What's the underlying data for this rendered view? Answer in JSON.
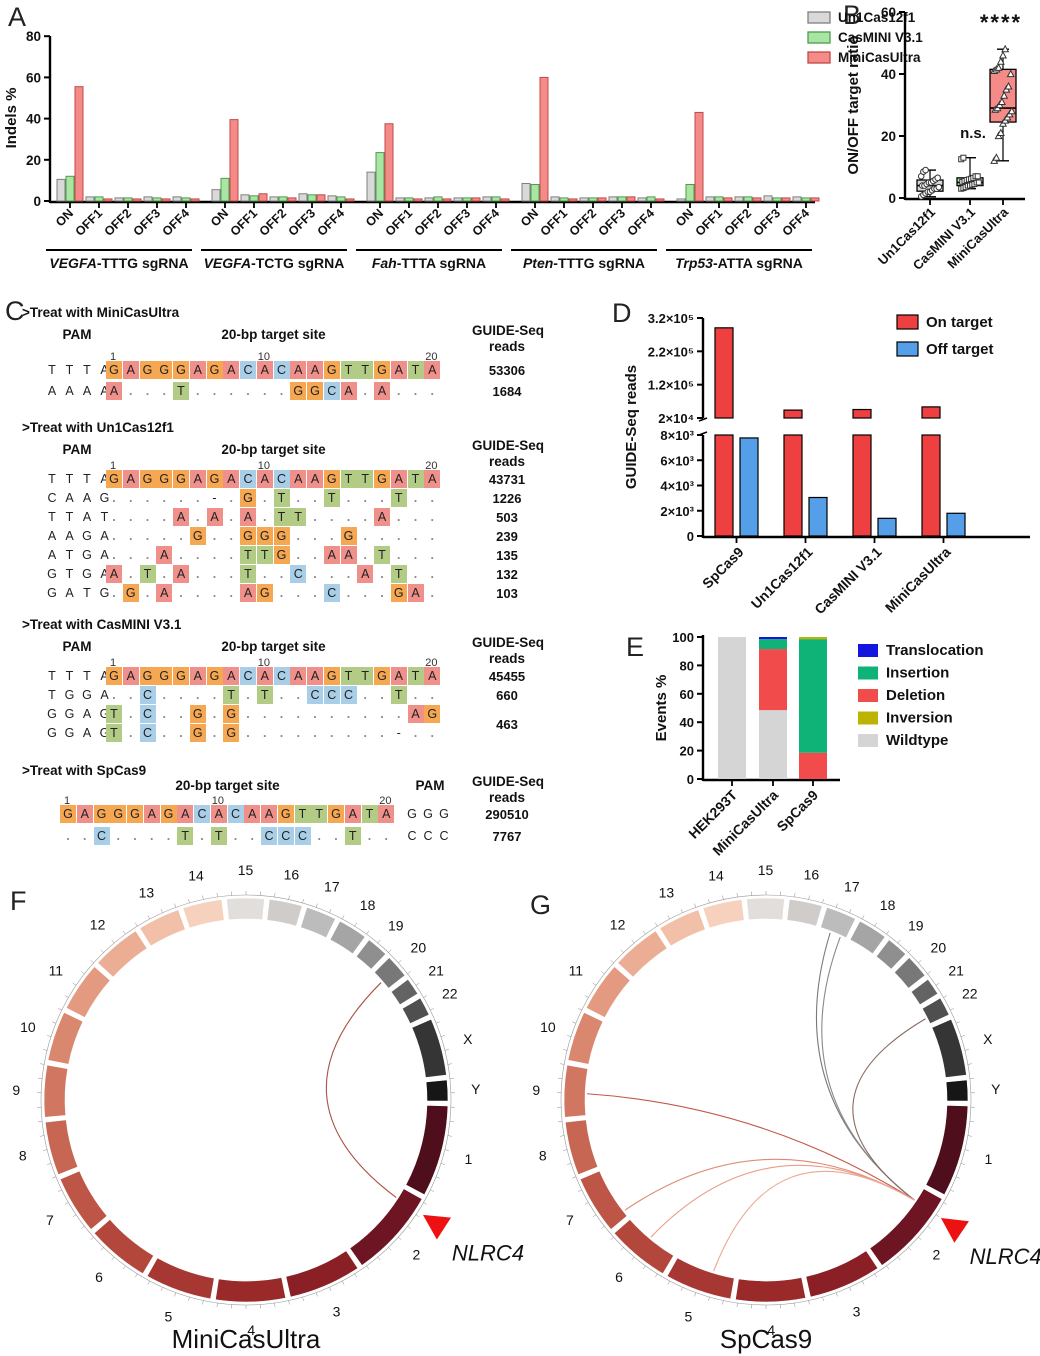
{
  "panels": {
    "A": {
      "label": "A",
      "ylabel": "Indels %",
      "yticks": [
        0,
        20,
        40,
        60,
        80
      ],
      "sites": [
        "ON",
        "OFF1",
        "OFF2",
        "OFF3",
        "OFF4"
      ],
      "legend": [
        {
          "label": "Un1Cas12f1",
          "fill": "#D9D9D9",
          "stroke": "#7F7F7F"
        },
        {
          "label": "CasMINI V3.1",
          "fill": "#A9E6A4",
          "stroke": "#4E9B4E"
        },
        {
          "label": "MiniCasUltra",
          "fill": "#F58B88",
          "stroke": "#C04848"
        }
      ],
      "groups": [
        {
          "gene": "VEGFA",
          "suffix": "-TTTG sgRNA",
          "values": [
            [
              10.5,
              12,
              55.5
            ],
            [
              2,
              2,
              1
            ],
            [
              1.5,
              1.5,
              1
            ],
            [
              2,
              1.5,
              1
            ],
            [
              2,
              1.5,
              1
            ]
          ]
        },
        {
          "gene": "VEGFA",
          "suffix": "-TCTG sgRNA",
          "values": [
            [
              5.5,
              11,
              39.5
            ],
            [
              3,
              2.5,
              3.5
            ],
            [
              2,
              2,
              1.5
            ],
            [
              3.5,
              3,
              3
            ],
            [
              2.5,
              2,
              1
            ]
          ]
        },
        {
          "gene": "Fah",
          "suffix": "-TTTA sgRNA",
          "values": [
            [
              14,
              23.5,
              37.5
            ],
            [
              1.5,
              1.5,
              1
            ],
            [
              1.5,
              2,
              1
            ],
            [
              1.5,
              1.5,
              1.5
            ],
            [
              2,
              2,
              1
            ]
          ]
        },
        {
          "gene": "Pten",
          "suffix": "-TTTG sgRNA",
          "values": [
            [
              8.5,
              8,
              60
            ],
            [
              2,
              1.5,
              1
            ],
            [
              1.5,
              1.5,
              1.5
            ],
            [
              2,
              2,
              2
            ],
            [
              1.5,
              2,
              1
            ]
          ]
        },
        {
          "gene": "Trp53",
          "suffix": "-ATTA sgRNA",
          "values": [
            [
              1,
              8,
              43
            ],
            [
              2,
              2,
              1.5
            ],
            [
              2,
              2,
              1.5
            ],
            [
              2.5,
              1.5,
              1.5
            ],
            [
              2,
              1.5,
              1.5
            ]
          ]
        }
      ]
    },
    "B": {
      "label": "B",
      "ylabel": "ON/OFF target ratio",
      "yticks": [
        0,
        20,
        40,
        60
      ],
      "groups": [
        {
          "name": "Un1Cas12f1",
          "marker": "circle",
          "fill": "#D9D9D9",
          "q1": 2.2,
          "median": 4,
          "q3": 5.8,
          "lo": 0.4,
          "hi": 9,
          "annotation": "",
          "points": [
            0.5,
            1,
            1.5,
            2,
            2,
            2.5,
            3,
            3,
            3.5,
            4,
            4,
            4.5,
            5,
            5,
            5.5,
            6,
            6.5,
            7,
            8.5,
            9
          ]
        },
        {
          "name": "CasMINI V3.1",
          "marker": "square",
          "fill": "#A9E6A4",
          "q1": 4,
          "median": 5,
          "q3": 6.5,
          "lo": 3,
          "hi": 13,
          "annotation": "n.s.",
          "points": [
            3,
            3.2,
            3.5,
            4,
            4,
            4.3,
            4.5,
            5,
            5,
            5.2,
            5.5,
            5.8,
            6,
            6.2,
            6.5,
            7,
            7,
            12.5,
            13
          ]
        },
        {
          "name": "MiniCasUltra",
          "marker": "triangle",
          "fill": "#F58B88",
          "q1": 24.5,
          "median": 29,
          "q3": 41.5,
          "lo": 12,
          "hi": 48,
          "annotation": "****",
          "points": [
            12,
            13,
            20,
            21,
            24,
            25,
            26,
            27,
            28,
            28.5,
            29,
            30,
            31,
            33,
            35,
            36,
            40,
            41,
            41.5,
            42,
            44,
            46,
            48
          ]
        }
      ]
    },
    "C": {
      "label": "C",
      "pam_header": "PAM",
      "target_header": "20-bp target site",
      "reads_header_line1": "GUIDE-Seq",
      "reads_header_line2": "reads",
      "ruler": [
        "1",
        "10",
        "20"
      ],
      "base_colors": {
        "A": "#F0908A",
        "G": "#F5A752",
        "C": "#A9CFE8",
        "T": "#B2CC86"
      },
      "blocks": [
        {
          "title": ">Treat with MiniCasUltra",
          "pam_side": "left",
          "ref": {
            "pam": "TTTA",
            "seq": "GAGGGAGACACAAGTTGATA",
            "reads": "53306"
          },
          "rows": [
            {
              "pam": "AAAA",
              "muts": {
                "1": "A",
                "5": "T",
                "12": "G",
                "13": "G",
                "14": "C",
                "15": "A",
                "17": "A"
              },
              "reads": "1684"
            }
          ]
        },
        {
          "title": ">Treat with Un1Cas12f1",
          "pam_side": "left",
          "ref": {
            "pam": "TTTA",
            "seq": "GAGGGAGACACAAGTTGATA",
            "reads": "43731"
          },
          "rows": [
            {
              "pam": "CAAG",
              "muts": {
                "7": "-",
                "9": "G",
                "11": "T",
                "14": "T",
                "18": "T"
              },
              "reads": "1226"
            },
            {
              "pam": "TTAT",
              "muts": {
                "5": "A",
                "7": "A",
                "9": "A",
                "11": "T",
                "12": "T",
                "17": "A"
              },
              "reads": "503"
            },
            {
              "pam": "AAGA",
              "muts": {
                "6": "G",
                "9": "G",
                "10": "G",
                "11": "G",
                "15": "G"
              },
              "reads": "239"
            },
            {
              "pam": "ATGA",
              "muts": {
                "4": "A",
                "9": "T",
                "10": "T",
                "11": "G",
                "14": "A",
                "15": "A",
                "17": "T"
              },
              "reads": "135"
            },
            {
              "pam": "GTGA",
              "muts": {
                "1": "A",
                "3": "T",
                "5": "A",
                "9": "T",
                "12": "C",
                "16": "A",
                "18": "T"
              },
              "reads": "132"
            },
            {
              "pam": "GATG",
              "muts": {
                "2": "G",
                "4": "A",
                "9": "A",
                "10": "G",
                "14": "C",
                "18": "G",
                "19": "A"
              },
              "reads": "103"
            }
          ]
        },
        {
          "title": ">Treat with CasMINI V3.1",
          "pam_side": "left",
          "ref": {
            "pam": "TTTA",
            "seq": "GAGGGAGACACAAGTTGATA",
            "reads": "45455"
          },
          "rows": [
            {
              "pam": "TGGA",
              "muts": {
                "3": "C",
                "8": "T",
                "10": "T",
                "13": "C",
                "14": "C",
                "15": "C",
                "18": "T"
              },
              "reads": "660"
            },
            {
              "pam": "GGAG",
              "muts": {
                "1": "T",
                "3": "C",
                "6": "G",
                "8": "G",
                "19": "A",
                "20": "G"
              },
              "reads": "463",
              "reads_span": 2
            },
            {
              "pam": "GGAG",
              "muts": {
                "1": "T",
                "3": "C",
                "6": "G",
                "8": "G",
                "18": "-"
              },
              "reads": ""
            }
          ]
        },
        {
          "title": ">Treat with SpCas9",
          "pam_side": "right",
          "ref": {
            "pam": "GGG",
            "seq": "GAGGGAGACACAAGTTGATA",
            "reads": "290510"
          },
          "rows": [
            {
              "pam": "CCC",
              "muts": {
                "3": "C",
                "8": "T",
                "10": "T",
                "13": "C",
                "14": "C",
                "15": "C",
                "18": "T"
              },
              "reads": "7767"
            }
          ]
        }
      ]
    },
    "D": {
      "label": "D",
      "ylabel": "GUIDE-Seq reads",
      "legend": [
        {
          "label": "On target",
          "color": "#EE4040"
        },
        {
          "label": "Off target",
          "color": "#549FE8"
        }
      ],
      "lower_ticks": [
        {
          "v": 0,
          "label": "0"
        },
        {
          "v": 2000,
          "label": "2×10³"
        },
        {
          "v": 4000,
          "label": "4×10³"
        },
        {
          "v": 6000,
          "label": "6×10³"
        },
        {
          "v": 8000,
          "label": "8×10³"
        }
      ],
      "upper_ticks": [
        {
          "v": 20000,
          "label": "2×10⁴"
        },
        {
          "v": 120000,
          "label": "1.2×10⁵"
        },
        {
          "v": 220000,
          "label": "2.2×10⁵"
        },
        {
          "v": 320000,
          "label": "3.2×10⁵"
        }
      ],
      "categories": [
        "SpCas9",
        "Un1Cas12f1",
        "CasMINI V3.1",
        "MiniCasUltra"
      ],
      "on_target": [
        290510,
        43731,
        45455,
        53306
      ],
      "off_target": [
        7767,
        3050,
        1400,
        1800
      ]
    },
    "E": {
      "label": "E",
      "ylabel": "Events %",
      "yticks": [
        0,
        20,
        40,
        60,
        80,
        100
      ],
      "colors": {
        "Translocation": "#1515E0",
        "Insertion": "#0FB377",
        "Deletion": "#F24B4B",
        "Inversion": "#BCB400",
        "Wildtype": "#D5D5D5"
      },
      "legend": [
        "Translocation",
        "Insertion",
        "Deletion",
        "Inversion",
        "Wildtype"
      ],
      "bars": [
        {
          "name": "HEK293T",
          "segments": [
            [
              "Wildtype",
              100
            ]
          ]
        },
        {
          "name": "MiniCasUltra",
          "segments": [
            [
              "Wildtype",
              48.5
            ],
            [
              "Deletion",
              43
            ],
            [
              "Insertion",
              7
            ],
            [
              "Translocation",
              1.5
            ]
          ]
        },
        {
          "name": "SpCas9",
          "segments": [
            [
              "Deletion",
              18.5
            ],
            [
              "Insertion",
              80
            ],
            [
              "Inversion",
              1.5
            ]
          ]
        }
      ]
    },
    "circos": {
      "chromosomes": [
        "1",
        "2",
        "3",
        "4",
        "5",
        "6",
        "7",
        "8",
        "9",
        "10",
        "11",
        "12",
        "13",
        "14",
        "15",
        "16",
        "17",
        "18",
        "19",
        "20",
        "21",
        "22",
        "X",
        "Y"
      ],
      "sizes_mb": [
        249,
        243,
        198,
        190,
        182,
        171,
        159,
        146,
        141,
        136,
        135,
        134,
        115,
        107,
        102,
        90,
        83,
        80,
        59,
        64,
        47,
        51,
        156,
        57
      ],
      "colors": [
        "#4F0E1B",
        "#6E1523",
        "#8A2026",
        "#9A2A2A",
        "#A63732",
        "#B3473C",
        "#BD5647",
        "#C76753",
        "#D17660",
        "#DA876F",
        "#E39A80",
        "#EBAD93",
        "#F2C0A8",
        "#F6D1BD",
        "#E2DEDB",
        "#CFCCC9",
        "#BCBCBC",
        "#A5A5A5",
        "#8F8F8F",
        "#787878",
        "#636363",
        "#4F4F4F",
        "#353535",
        "#161616"
      ],
      "arrow_color": "#EE1111"
    },
    "F": {
      "label": "F",
      "title": "MiniCasUltra",
      "gene": "NLRC4",
      "nlrc4_angle": 123,
      "links": [
        {
          "to": 49,
          "color": "#A85045"
        }
      ]
    },
    "G": {
      "label": "G",
      "title": "SpCas9",
      "gene": "NLRC4",
      "nlrc4_angle": 124,
      "links": [
        {
          "to": 21,
          "color": "#7A7A7A"
        },
        {
          "to": 24.5,
          "color": "#8A8A8A"
        },
        {
          "to": 63,
          "color": "#8A6A62"
        },
        {
          "to": 272,
          "color": "#C4574A"
        },
        {
          "to": 232,
          "color": "#E08A75"
        },
        {
          "to": 220,
          "color": "#EA9D88"
        },
        {
          "to": 197,
          "color": "#EDA893"
        }
      ]
    }
  },
  "chart_data": [
    {
      "type": "bar",
      "title": "Panel A: Indels %",
      "ylabel": "Indels %",
      "ylim": [
        0,
        80
      ],
      "series_names": [
        "Un1Cas12f1",
        "CasMINI V3.1",
        "MiniCasUltra"
      ],
      "categories": [
        "VEGFA-TTTG ON",
        "OFF1",
        "OFF2",
        "OFF3",
        "OFF4",
        "VEGFA-TCTG ON",
        "OFF1",
        "OFF2",
        "OFF3",
        "OFF4",
        "Fah-TTTA ON",
        "OFF1",
        "OFF2",
        "OFF3",
        "OFF4",
        "Pten-TTTG ON",
        "OFF1",
        "OFF2",
        "OFF3",
        "OFF4",
        "Trp53-ATTA ON",
        "OFF1",
        "OFF2",
        "OFF3",
        "OFF4"
      ],
      "series": [
        {
          "name": "Un1Cas12f1",
          "values": [
            10.5,
            2,
            1.5,
            2,
            2,
            5.5,
            3,
            2,
            3.5,
            2.5,
            14,
            1.5,
            1.5,
            1.5,
            2,
            8.5,
            2,
            1.5,
            2,
            1.5,
            1,
            2,
            2,
            2.5,
            2
          ]
        },
        {
          "name": "CasMINI V3.1",
          "values": [
            12,
            2,
            1.5,
            1.5,
            1.5,
            11,
            2.5,
            2,
            3,
            2,
            23.5,
            1.5,
            2,
            1.5,
            2,
            8,
            1.5,
            1.5,
            2,
            2,
            8,
            2,
            2,
            1.5,
            1.5
          ]
        },
        {
          "name": "MiniCasUltra",
          "values": [
            55.5,
            1,
            1,
            1,
            1,
            39.5,
            3.5,
            1.5,
            3,
            1,
            37.5,
            1,
            1,
            1.5,
            1,
            60,
            1,
            1.5,
            2,
            1,
            43,
            1.5,
            1.5,
            1.5,
            1.5
          ]
        }
      ]
    },
    {
      "type": "box",
      "title": "Panel B: ON/OFF target ratio",
      "ylabel": "ON/OFF target ratio",
      "ylim": [
        0,
        60
      ],
      "categories": [
        "Un1Cas12f1",
        "CasMINI V3.1",
        "MiniCasUltra"
      ],
      "boxes": [
        {
          "q1": 2.2,
          "median": 4,
          "q3": 5.8,
          "whisker_lo": 0.4,
          "whisker_hi": 9
        },
        {
          "q1": 4,
          "median": 5,
          "q3": 6.5,
          "whisker_lo": 3,
          "whisker_hi": 13,
          "annotation": "n.s."
        },
        {
          "q1": 24.5,
          "median": 29,
          "q3": 41.5,
          "whisker_lo": 12,
          "whisker_hi": 48,
          "annotation": "****"
        }
      ]
    },
    {
      "type": "bar",
      "title": "Panel D: GUIDE-Seq reads",
      "ylabel": "GUIDE-Seq reads",
      "broken_axis": {
        "lower": [
          0,
          8000
        ],
        "upper": [
          20000,
          320000
        ]
      },
      "categories": [
        "SpCas9",
        "Un1Cas12f1",
        "CasMINI V3.1",
        "MiniCasUltra"
      ],
      "series": [
        {
          "name": "On target",
          "values": [
            290510,
            43731,
            45455,
            53306
          ]
        },
        {
          "name": "Off target",
          "values": [
            7767,
            3050,
            1400,
            1800
          ]
        }
      ]
    },
    {
      "type": "bar",
      "title": "Panel E: Events % (stacked)",
      "ylabel": "Events %",
      "ylim": [
        0,
        100
      ],
      "categories": [
        "HEK293T",
        "MiniCasUltra",
        "SpCas9"
      ],
      "series": [
        {
          "name": "Wildtype",
          "values": [
            100,
            48.5,
            0
          ]
        },
        {
          "name": "Deletion",
          "values": [
            0,
            43,
            18.5
          ]
        },
        {
          "name": "Insertion",
          "values": [
            0,
            7,
            80
          ]
        },
        {
          "name": "Translocation",
          "values": [
            0,
            1.5,
            0
          ]
        },
        {
          "name": "Inversion",
          "values": [
            0,
            0,
            1.5
          ]
        }
      ]
    }
  ]
}
